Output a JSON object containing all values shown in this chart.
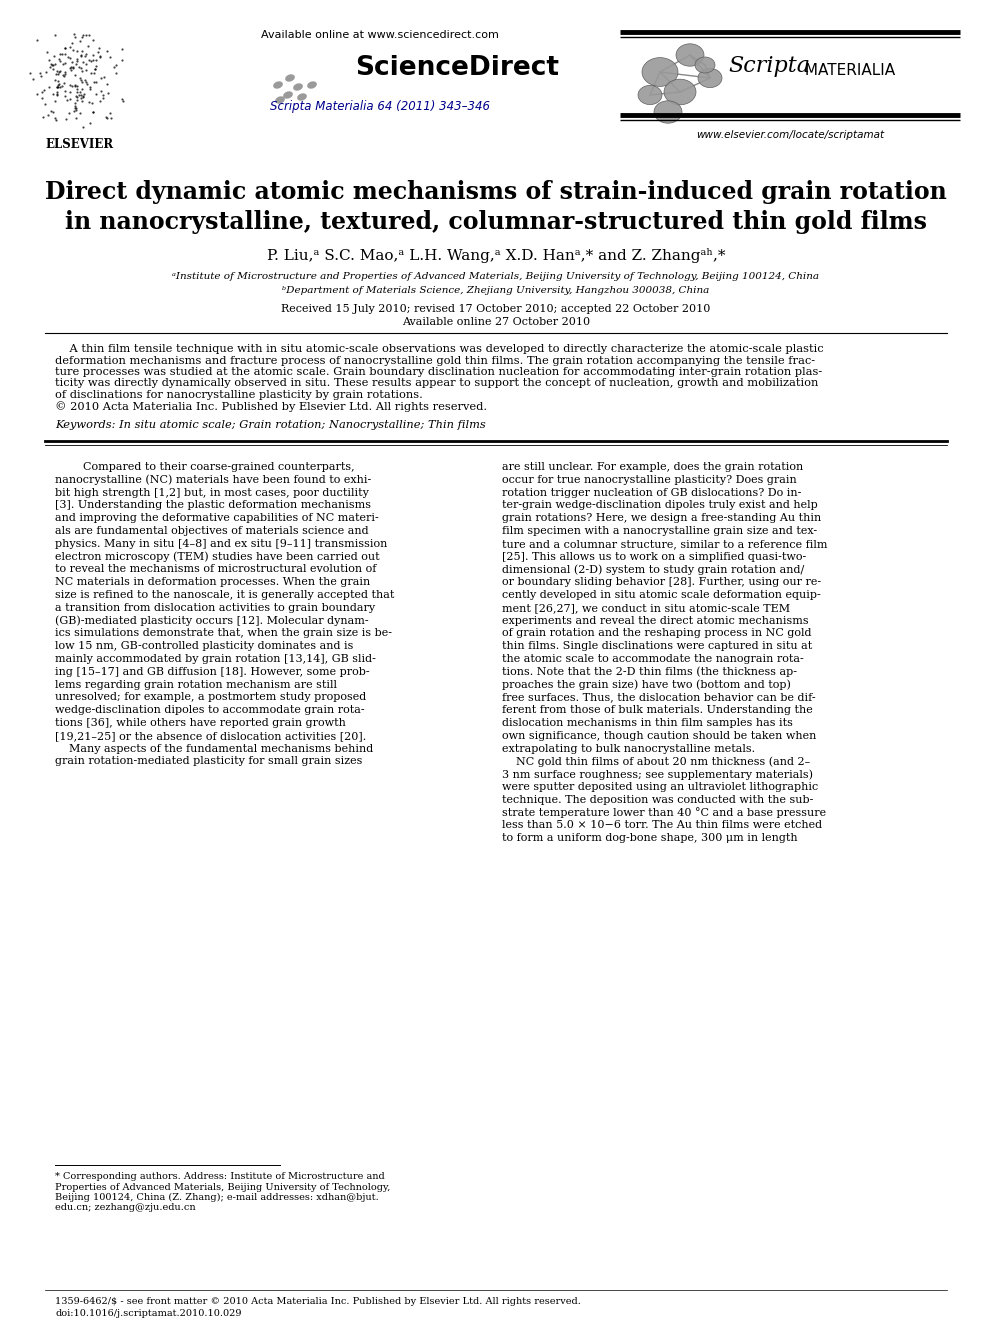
{
  "title_line1": "Direct dynamic atomic mechanisms of strain-induced grain rotation",
  "title_line2": "in nanocrystalline, textured, columnar-structured thin gold films",
  "authors": "P. Liu,ᵃ S.C. Mao,ᵃ L.H. Wang,ᵃ X.D. Hanᵃ,* and Z. Zhangᵃʰ,*",
  "affil_a": "ᵃInstitute of Microstructure and Properties of Advanced Materials, Beijing University of Technology, Beijing 100124, China",
  "affil_b": "ᵇDepartment of Materials Science, Zhejiang University, Hangzhou 300038, China",
  "dates": "Received 15 July 2010; revised 17 October 2010; accepted 22 October 2010",
  "online": "Available online 27 October 2010",
  "journal_ref": "Scripta Materialia 64 (2011) 343–346",
  "available_online": "Available online at www.sciencedirect.com",
  "website": "www.elsevier.com/locate/scriptamat",
  "doi": "doi:10.1016/j.scriptamat.2010.10.029",
  "footer_left": "1359-6462/$ - see front matter © 2010 Acta Materialia Inc. Published by Elsevier Ltd. All rights reserved.",
  "keywords": "Keywords: In situ atomic scale; Grain rotation; Nanocrystalline; Thin films",
  "bg_color": "#ffffff",
  "link_color": "#00008B",
  "header_blue": "#00008B",
  "abstract_lines": [
    "    A thin film tensile technique with in situ atomic-scale observations was developed to directly characterize the atomic-scale plastic",
    "deformation mechanisms and fracture process of nanocrystalline gold thin films. The grain rotation accompanying the tensile frac-",
    "ture processes was studied at the atomic scale. Grain boundary disclination nucleation for accommodating inter-grain rotation plas-",
    "ticity was directly dynamically observed in situ. These results appear to support the concept of nucleation, growth and mobilization",
    "of disclinations for nanocrystalline plasticity by grain rotations.",
    "© 2010 Acta Materialia Inc. Published by Elsevier Ltd. All rights reserved."
  ],
  "col1_lines": [
    "        Compared to their coarse-grained counterparts,",
    "nanocrystalline (NC) materials have been found to exhi-",
    "bit high strength [1,2] but, in most cases, poor ductility",
    "[3]. Understanding the plastic deformation mechanisms",
    "and improving the deformative capabilities of NC materi-",
    "als are fundamental objectives of materials science and",
    "physics. Many in situ [4–8] and ex situ [9–11] transmission",
    "electron microscopy (TEM) studies have been carried out",
    "to reveal the mechanisms of microstructural evolution of",
    "NC materials in deformation processes. When the grain",
    "size is refined to the nanoscale, it is generally accepted that",
    "a transition from dislocation activities to grain boundary",
    "(GB)-mediated plasticity occurs [12]. Molecular dynam-",
    "ics simulations demonstrate that, when the grain size is be-",
    "low 15 nm, GB-controlled plasticity dominates and is",
    "mainly accommodated by grain rotation [13,14], GB slid-",
    "ing [15–17] and GB diffusion [18]. However, some prob-",
    "lems regarding grain rotation mechanism are still",
    "unresolved; for example, a postmortem study proposed",
    "wedge-disclination dipoles to accommodate grain rota-",
    "tions [36], while others have reported grain growth",
    "[19,21–25] or the absence of dislocation activities [20].",
    "    Many aspects of the fundamental mechanisms behind",
    "grain rotation-mediated plasticity for small grain sizes"
  ],
  "col2_lines": [
    "are still unclear. For example, does the grain rotation",
    "occur for true nanocrystalline plasticity? Does grain",
    "rotation trigger nucleation of GB dislocations? Do in-",
    "ter-grain wedge-disclination dipoles truly exist and help",
    "grain rotations? Here, we design a free-standing Au thin",
    "film specimen with a nanocrystalline grain size and tex-",
    "ture and a columnar structure, similar to a reference film",
    "[25]. This allows us to work on a simplified quasi-two-",
    "dimensional (2-D) system to study grain rotation and/",
    "or boundary sliding behavior [28]. Further, using our re-",
    "cently developed in situ atomic scale deformation equip-",
    "ment [26,27], we conduct in situ atomic-scale TEM",
    "experiments and reveal the direct atomic mechanisms",
    "of grain rotation and the reshaping process in NC gold",
    "thin films. Single disclinations were captured in situ at",
    "the atomic scale to accommodate the nanograin rota-",
    "tions. Note that the 2-D thin films (the thickness ap-",
    "proaches the grain size) have two (bottom and top)",
    "free surfaces. Thus, the dislocation behavior can be dif-",
    "ferent from those of bulk materials. Understanding the",
    "dislocation mechanisms in thin film samples has its",
    "own significance, though caution should be taken when",
    "extrapolating to bulk nanocrystalline metals.",
    "    NC gold thin films of about 20 nm thickness (and 2–",
    "3 nm surface roughness; see supplementary materials)",
    "were sputter deposited using an ultraviolet lithographic",
    "technique. The deposition was conducted with the sub-",
    "strate temperature lower than 40 °C and a base pressure",
    "less than 5.0 × 10−6 torr. The Au thin films were etched",
    "to form a uniform dog-bone shape, 300 μm in length"
  ],
  "footnote_lines": [
    "* Corresponding authors. Address: Institute of Microstructure and",
    "Properties of Advanced Materials, Beijing University of Technology,",
    "Beijing 100124, China (Z. Zhang); e-mail addresses: xdhan@bjut.",
    "edu.cn; zezhang@zju.edu.cn"
  ]
}
